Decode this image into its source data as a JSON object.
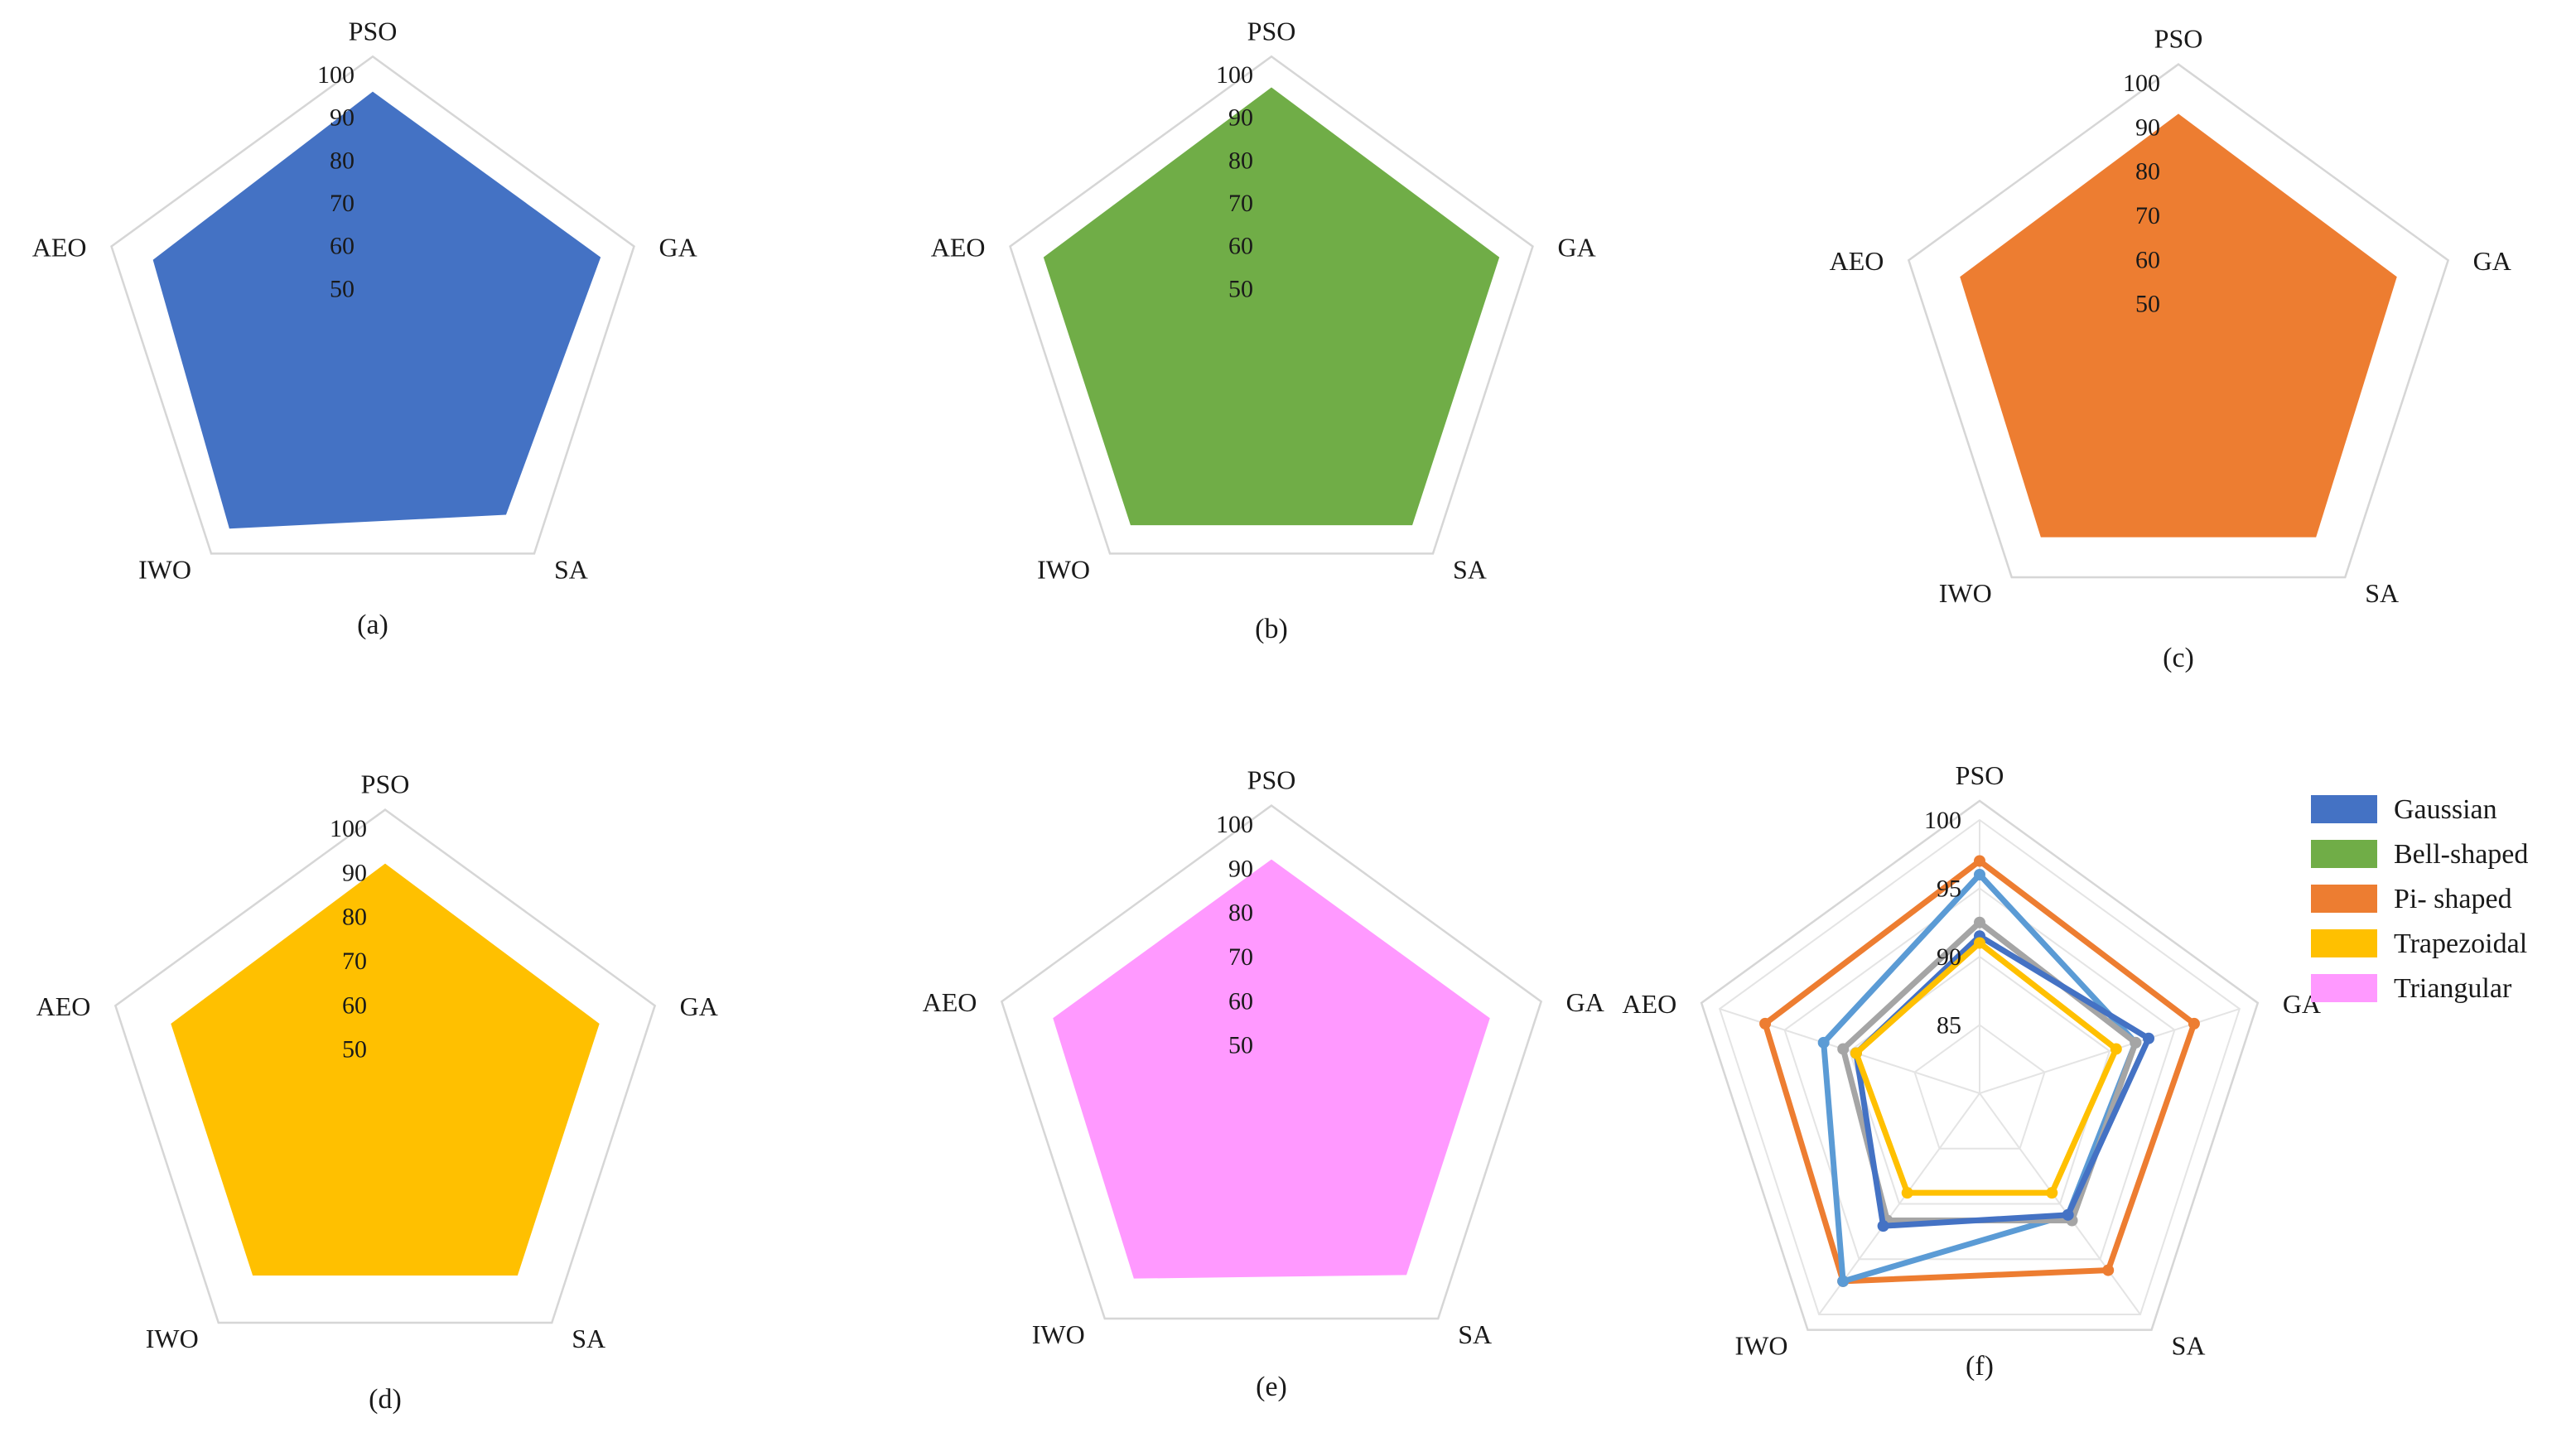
{
  "colors": {
    "gaussian": "#4472C4",
    "bell": "#70AD47",
    "pi": "#ED7D31",
    "trapezoidal": "#FFC000",
    "triangular": "#FF99FF",
    "gray": "#A5A5A5",
    "lightblue": "#5B9BD5"
  },
  "legend": [
    {
      "label": "Gaussian",
      "color": "#4472C4"
    },
    {
      "label": "Bell-shaped",
      "color": "#70AD47"
    },
    {
      "label": "Pi- shaped",
      "color": "#ED7D31"
    },
    {
      "label": "Trapezoidal",
      "color": "#FFC000"
    },
    {
      "label": "Triangular",
      "color": "#FF99FF"
    }
  ],
  "chart_data": [
    {
      "type": "radar",
      "caption": "(a)",
      "axes": [
        "PSO",
        "GA",
        "SA",
        "IWO",
        "AEO"
      ],
      "rlim": [
        40,
        100
      ],
      "ticks": [
        50,
        60,
        70,
        80,
        90,
        100
      ],
      "series": [
        {
          "values": [
            96,
            96,
            93,
            97,
            94
          ],
          "color": "#4472C4"
        }
      ]
    },
    {
      "type": "radar",
      "caption": "(b)",
      "axes": [
        "PSO",
        "GA",
        "SA",
        "IWO",
        "AEO"
      ],
      "rlim": [
        40,
        100
      ],
      "ticks": [
        50,
        60,
        70,
        80,
        90,
        100
      ],
      "series": [
        {
          "values": [
            97,
            96,
            96,
            96,
            96
          ],
          "color": "#70AD47"
        }
      ]
    },
    {
      "type": "radar",
      "caption": "(c)",
      "axes": [
        "PSO",
        "GA",
        "SA",
        "IWO",
        "AEO"
      ],
      "rlim": [
        40,
        100
      ],
      "ticks": [
        50,
        60,
        70,
        80,
        90,
        100
      ],
      "series": [
        {
          "values": [
            93,
            92,
            93,
            93,
            92
          ],
          "color": "#ED7D31"
        }
      ]
    },
    {
      "type": "radar",
      "caption": "(d)",
      "axes": [
        "PSO",
        "GA",
        "SA",
        "IWO",
        "AEO"
      ],
      "rlim": [
        40,
        100
      ],
      "ticks": [
        50,
        60,
        70,
        80,
        90,
        100
      ],
      "series": [
        {
          "values": [
            92,
            91,
            91,
            91,
            91
          ],
          "color": "#FFC000"
        }
      ]
    },
    {
      "type": "radar",
      "caption": "(e)",
      "axes": [
        "PSO",
        "GA",
        "SA",
        "IWO",
        "AEO"
      ],
      "rlim": [
        40,
        100
      ],
      "ticks": [
        50,
        60,
        70,
        80,
        90,
        100
      ],
      "series": [
        {
          "values": [
            92,
            92,
            92,
            93,
            92
          ],
          "color": "#FF99FF"
        }
      ]
    },
    {
      "type": "radar",
      "caption": "(f)",
      "axes": [
        "PSO",
        "GA",
        "SA",
        "IWO",
        "AEO"
      ],
      "rlim": [
        80,
        100
      ],
      "ticks": [
        85,
        90,
        95,
        100
      ],
      "series": [
        {
          "values": [
            97,
            96.5,
            96,
            97,
            96.5
          ],
          "color": "#ED7D31"
        },
        {
          "values": [
            96,
            92,
            91,
            97,
            92
          ],
          "color": "#5B9BD5"
        },
        {
          "values": [
            92.5,
            92,
            91.5,
            91.5,
            90.5
          ],
          "color": "#A5A5A5"
        },
        {
          "values": [
            91.5,
            93,
            91,
            92,
            89.5
          ],
          "color": "#4472C4"
        },
        {
          "values": [
            91,
            90.5,
            89,
            89,
            89.5
          ],
          "color": "#FFC000"
        }
      ]
    }
  ]
}
